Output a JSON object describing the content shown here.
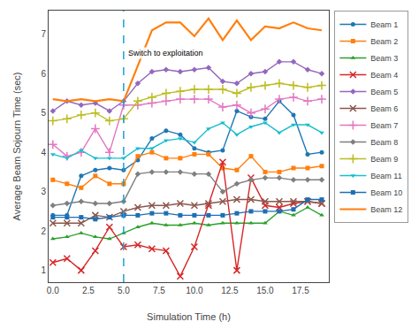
{
  "chart_data": {
    "type": "line",
    "xlabel": "Simulation Time (h)",
    "ylabel": "Average Beam Sojourn Time (sec)",
    "x": [
      0,
      1,
      2,
      3,
      4,
      5,
      6,
      7,
      8,
      9,
      10,
      11,
      12,
      13,
      14,
      15,
      16,
      17,
      18,
      19
    ],
    "series": [
      {
        "name": "Beam 1",
        "color": "#1f77b4",
        "marker": "circle",
        "line_style": "solid",
        "values": [
          2.4,
          2.4,
          3.4,
          3.55,
          3.6,
          3.55,
          3.8,
          4.35,
          4.55,
          4.45,
          4.1,
          4.0,
          4.05,
          5.05,
          4.9,
          4.85,
          5.3,
          4.95,
          3.95,
          4.0
        ]
      },
      {
        "name": "Beam 2",
        "color": "#ff7f0e",
        "marker": "square",
        "line_style": "solid",
        "values": [
          3.3,
          3.2,
          3.1,
          3.4,
          3.2,
          3.2,
          3.9,
          4.0,
          3.85,
          3.85,
          3.95,
          3.95,
          3.6,
          3.55,
          3.9,
          3.5,
          3.5,
          3.6,
          3.6,
          3.65
        ]
      },
      {
        "name": "Beam 3",
        "color": "#2ca02c",
        "marker": "triangle-up",
        "line_style": "solid",
        "values": [
          1.8,
          1.85,
          1.95,
          1.85,
          1.8,
          1.95,
          2.1,
          2.2,
          2.15,
          2.15,
          2.2,
          2.15,
          2.2,
          2.2,
          2.2,
          2.2,
          2.5,
          2.4,
          2.6,
          2.4
        ]
      },
      {
        "name": "Beam 4",
        "color": "#d62728",
        "marker": "x",
        "line_style": "solid",
        "values": [
          1.2,
          1.3,
          1.0,
          1.5,
          2.1,
          1.6,
          1.65,
          1.55,
          1.5,
          0.85,
          1.6,
          2.65,
          3.75,
          1.0,
          3.35,
          2.65,
          2.6,
          2.7,
          2.75,
          2.7
        ]
      },
      {
        "name": "Beam 5",
        "color": "#9467bd",
        "marker": "diamond",
        "line_style": "solid",
        "values": [
          5.05,
          5.3,
          5.2,
          5.25,
          5.05,
          5.3,
          5.75,
          6.05,
          6.1,
          6.05,
          6.1,
          6.15,
          5.8,
          5.75,
          6.0,
          6.05,
          6.3,
          6.3,
          6.1,
          6.0
        ]
      },
      {
        "name": "Beam 6",
        "color": "#8c564b",
        "marker": "x",
        "line_style": "solid",
        "values": [
          2.2,
          2.2,
          2.2,
          2.4,
          2.35,
          2.5,
          2.6,
          2.65,
          2.65,
          2.7,
          2.65,
          2.7,
          2.75,
          2.8,
          2.8,
          2.75,
          2.75,
          2.75,
          2.75,
          2.7
        ]
      },
      {
        "name": "Beam 7",
        "color": "#e377c2",
        "marker": "plus",
        "line_style": "solid",
        "values": [
          4.2,
          3.9,
          4.0,
          4.6,
          4.0,
          5.2,
          5.2,
          5.25,
          5.3,
          5.35,
          5.35,
          5.35,
          5.15,
          5.2,
          5.0,
          5.1,
          5.35,
          5.4,
          5.3,
          5.35
        ]
      },
      {
        "name": "Beam 8",
        "color": "#7f7f7f",
        "marker": "diamond",
        "line_style": "solid",
        "values": [
          2.65,
          2.7,
          2.75,
          2.7,
          2.7,
          2.75,
          3.45,
          3.5,
          3.5,
          3.5,
          3.45,
          3.45,
          3.0,
          3.2,
          3.3,
          3.35,
          3.35,
          3.3,
          3.3,
          3.3
        ]
      },
      {
        "name": "Beam 9",
        "color": "#bcbd22",
        "marker": "plus",
        "line_style": "solid",
        "values": [
          4.8,
          4.85,
          4.95,
          5.0,
          4.8,
          4.85,
          5.3,
          5.4,
          5.5,
          5.55,
          5.6,
          5.6,
          5.6,
          5.5,
          5.65,
          5.7,
          5.75,
          5.7,
          5.65,
          5.7
        ]
      },
      {
        "name": "Beam 11",
        "color": "#17becf",
        "marker": "triangle-down",
        "line_style": "solid",
        "values": [
          3.95,
          3.85,
          4.05,
          3.85,
          3.85,
          3.85,
          4.1,
          4.1,
          4.3,
          4.35,
          4.25,
          4.6,
          4.75,
          4.45,
          4.65,
          4.75,
          4.5,
          4.7,
          4.7,
          4.5
        ]
      },
      {
        "name": "Beam 10",
        "color": "#1e6eb4",
        "marker": "square",
        "line_style": "solid",
        "values": [
          2.35,
          2.35,
          2.35,
          2.3,
          2.35,
          2.4,
          2.4,
          2.45,
          2.45,
          2.4,
          2.4,
          2.4,
          2.4,
          2.45,
          2.5,
          2.5,
          2.5,
          2.55,
          2.8,
          2.8
        ]
      },
      {
        "name": "Beam 12",
        "color": "#ff7f0e",
        "line_style": "solid",
        "values": [
          5.35,
          5.3,
          5.35,
          5.3,
          5.35,
          5.3,
          6.2,
          7.1,
          7.3,
          7.3,
          6.95,
          7.4,
          6.85,
          7.35,
          6.85,
          7.2,
          7.15,
          7.3,
          7.15,
          7.1
        ]
      }
    ],
    "vlines": [
      {
        "x": 5.0,
        "label": "Switch to exploitation",
        "color": "#1f9fd5",
        "line_style": "dashed"
      }
    ],
    "xlim": [
      -0.3,
      19.5
    ],
    "xticks": [
      {
        "value": 0,
        "label": "0.0"
      },
      2.5,
      {
        "value": 5,
        "label": "5.0"
      },
      7.5,
      {
        "value": 10,
        "label": "10.0"
      },
      12.5,
      {
        "value": 15,
        "label": "15.0"
      },
      17.5
    ],
    "ylim": [
      0.7,
      7.6
    ],
    "yticks": [
      1,
      2,
      3,
      4,
      5,
      6,
      7
    ],
    "grid": false,
    "legend": "right"
  }
}
